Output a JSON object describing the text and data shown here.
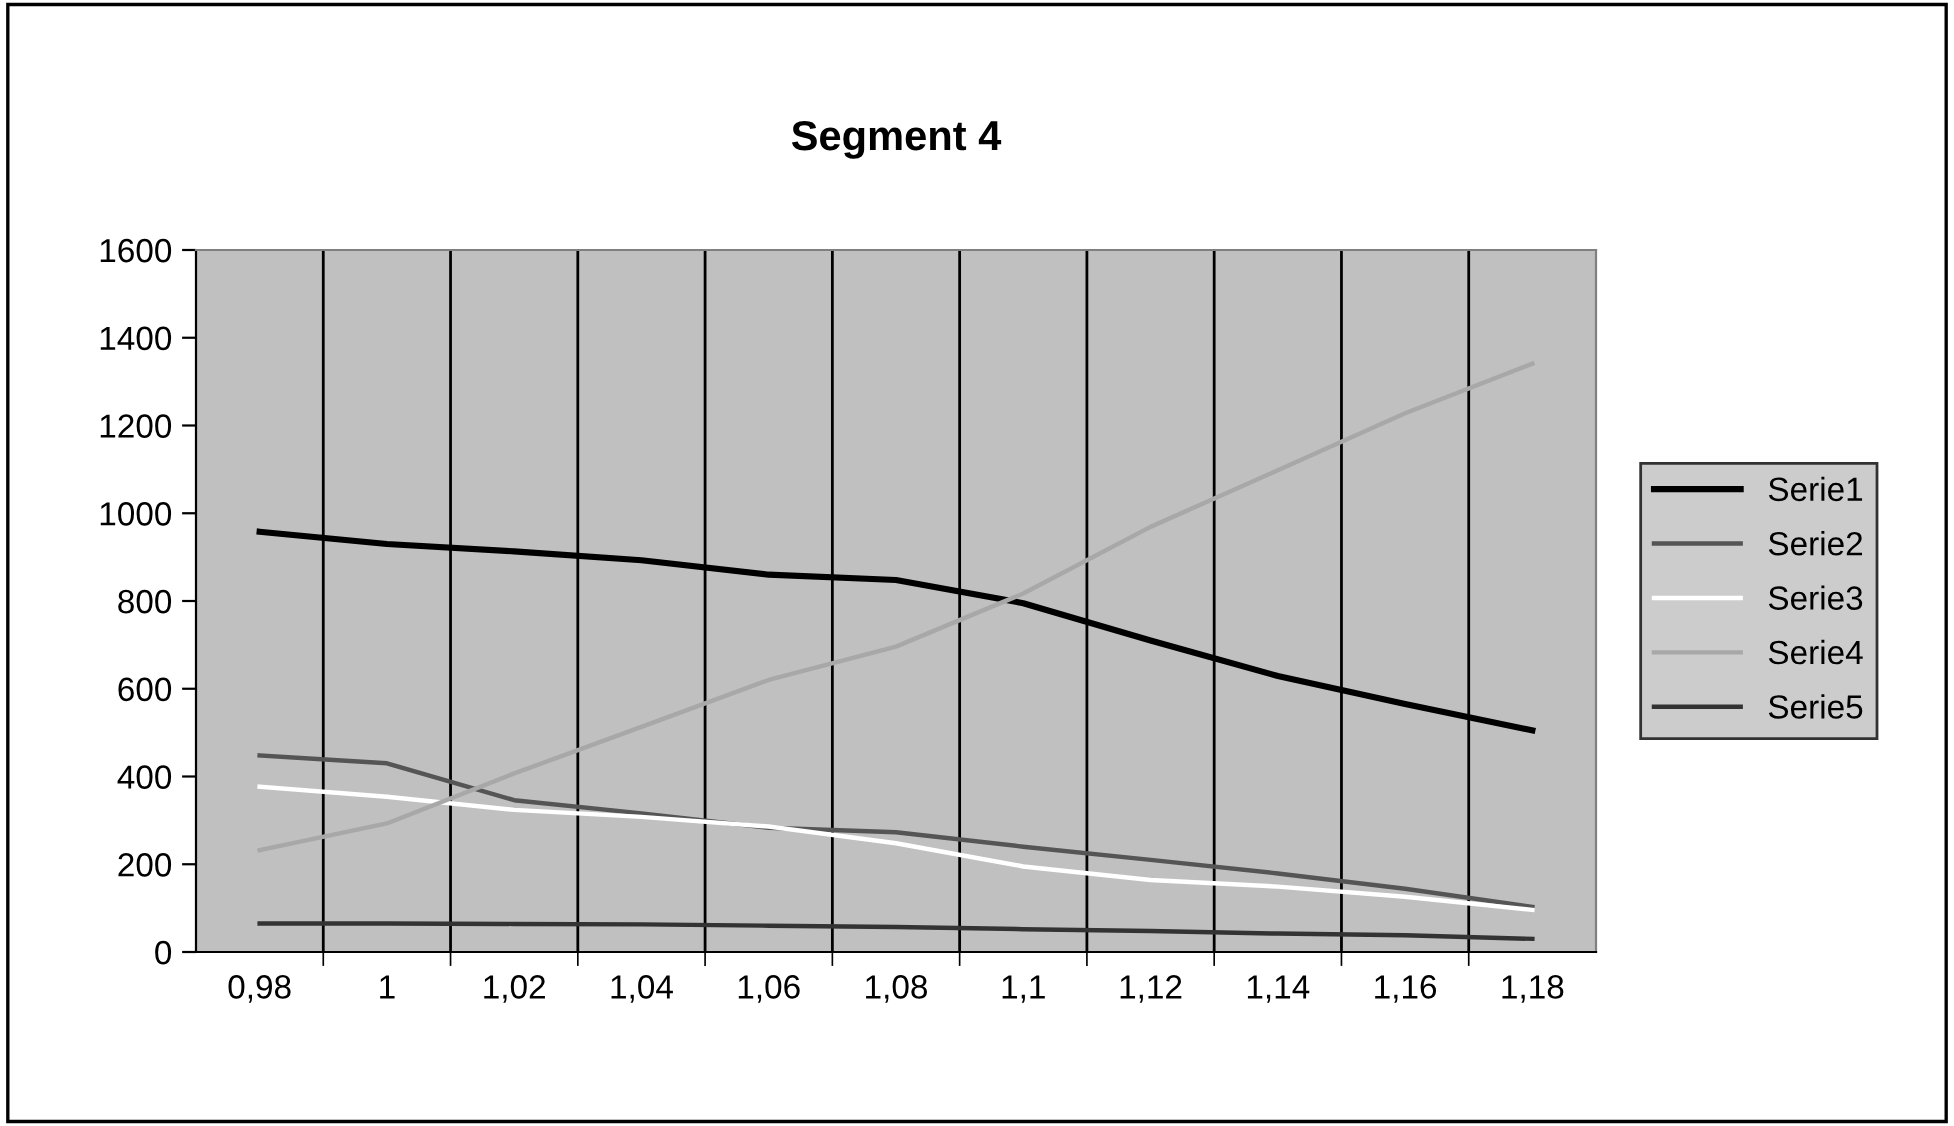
{
  "chart_data": {
    "type": "line",
    "title": "Segment 4",
    "categories": [
      "0,98",
      "1",
      "1,02",
      "1,04",
      "1,06",
      "1,08",
      "1,1",
      "1,12",
      "1,14",
      "1,16",
      "1,18"
    ],
    "series": [
      {
        "name": "Serie1",
        "color": "#000000",
        "values": [
          958,
          930,
          913,
          893,
          860,
          848,
          795,
          710,
          629,
          565,
          505
        ]
      },
      {
        "name": "Serie2",
        "color": "#555555",
        "values": [
          448,
          430,
          346,
          316,
          283,
          273,
          240,
          210,
          179,
          144,
          103
        ]
      },
      {
        "name": "Serie3",
        "color": "#ffffff",
        "values": [
          377,
          354,
          324,
          308,
          286,
          248,
          195,
          164,
          149,
          126,
          96
        ]
      },
      {
        "name": "Serie4",
        "color": "#a8a8a8",
        "values": [
          232,
          293,
          407,
          513,
          620,
          696,
          817,
          969,
          1098,
          1228,
          1341
        ]
      },
      {
        "name": "Serie5",
        "color": "#333333",
        "values": [
          65,
          65,
          64,
          63,
          60,
          57,
          52,
          48,
          42,
          38,
          30
        ]
      }
    ],
    "ylim": [
      0,
      1600
    ],
    "yticks": [
      0,
      200,
      400,
      600,
      800,
      1000,
      1200,
      1400,
      1600
    ],
    "grid": "x",
    "legend": "right",
    "marker": "none",
    "line_style": "solid"
  }
}
